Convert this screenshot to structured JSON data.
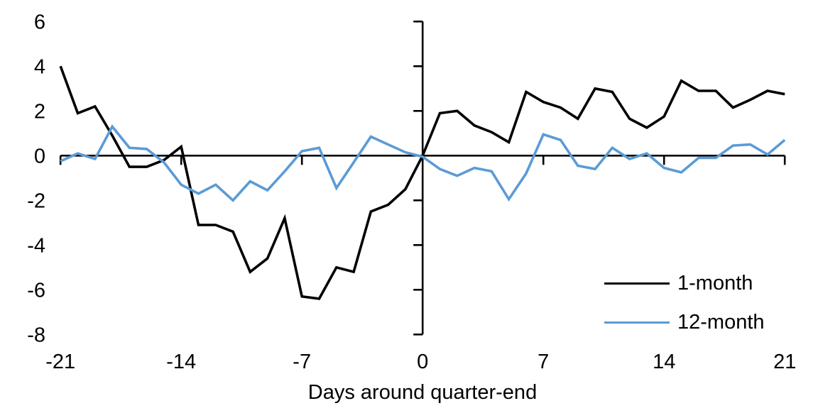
{
  "chart_data": {
    "type": "line",
    "title": "",
    "xlabel": "Days around quarter-end",
    "ylabel": "",
    "xlim": [
      -21,
      21
    ],
    "ylim": [
      -8,
      6
    ],
    "x_ticks": [
      -21,
      -14,
      -7,
      0,
      7,
      14,
      21
    ],
    "y_ticks": [
      6,
      4,
      2,
      0,
      -2,
      -4,
      -6,
      -8
    ],
    "grid": false,
    "legend_position": "lower-right",
    "axis_color": "#000000",
    "background": "#FFFFFF",
    "x": [
      -21,
      -20,
      -19,
      -18,
      -17,
      -16,
      -15,
      -14,
      -13,
      -12,
      -11,
      -10,
      -9,
      -8,
      -7,
      -6,
      -5,
      -4,
      -3,
      -2,
      -1,
      0,
      1,
      2,
      3,
      4,
      5,
      6,
      7,
      8,
      9,
      10,
      11,
      12,
      13,
      14,
      15,
      16,
      17,
      18,
      19,
      20,
      21
    ],
    "series": [
      {
        "name": "1-month",
        "color": "#000000",
        "values": [
          4.0,
          1.9,
          2.2,
          0.9,
          -0.5,
          -0.5,
          -0.2,
          0.4,
          -3.1,
          -3.1,
          -3.4,
          -5.2,
          -4.6,
          -2.8,
          -6.3,
          -6.4,
          -5.0,
          -5.2,
          -2.5,
          -2.2,
          -1.5,
          0.0,
          1.9,
          2.0,
          1.35,
          1.05,
          0.6,
          2.85,
          2.4,
          2.15,
          1.65,
          3.0,
          2.85,
          1.65,
          1.25,
          1.75,
          3.35,
          2.9,
          2.9,
          2.15,
          2.5,
          2.9,
          2.75
        ]
      },
      {
        "name": "12-month",
        "color": "#5B9BD5",
        "values": [
          -0.25,
          0.1,
          -0.15,
          1.3,
          0.35,
          0.3,
          -0.3,
          -1.3,
          -1.7,
          -1.3,
          -2.0,
          -1.15,
          -1.55,
          -0.7,
          0.2,
          0.35,
          -1.45,
          -0.3,
          0.85,
          0.5,
          0.15,
          -0.05,
          -0.6,
          -0.9,
          -0.55,
          -0.7,
          -1.95,
          -0.8,
          0.95,
          0.7,
          -0.45,
          -0.6,
          0.35,
          -0.15,
          0.1,
          -0.55,
          -0.75,
          -0.1,
          -0.1,
          0.45,
          0.5,
          0.05,
          0.7
        ]
      }
    ]
  }
}
